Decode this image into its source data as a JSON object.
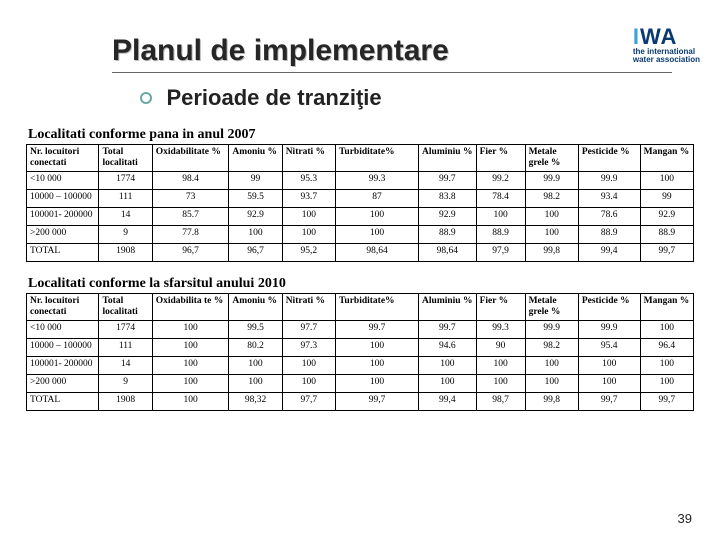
{
  "header": {
    "title": "Planul de implementare",
    "logo": {
      "main": "IWA",
      "sub1": "the international",
      "sub2": "water association"
    }
  },
  "subheading": "Perioade de tranziţie",
  "table1": {
    "caption": "Localitati conforme pana in anul 2007",
    "columns": [
      "Nr. locuitori conectati",
      "Total localitati",
      "Oxidabilitate %",
      "Amoniu %",
      "Nitrati %",
      "Turbiditate%",
      "Aluminiu %",
      "Fier %",
      "Metale grele %",
      "Pesticide %",
      "Mangan %"
    ],
    "rows": [
      [
        "<10 000",
        "1774",
        "98.4",
        "99",
        "95.3",
        "99.3",
        "99.7",
        "99.2",
        "99.9",
        "99.9",
        "100"
      ],
      [
        "10000 – 100000",
        "111",
        "73",
        "59.5",
        "93.7",
        "87",
        "83.8",
        "78.4",
        "98.2",
        "93.4",
        "99"
      ],
      [
        "100001- 200000",
        "14",
        "85.7",
        "92.9",
        "100",
        "100",
        "92.9",
        "100",
        "100",
        "78.6",
        "92.9"
      ],
      [
        ">200 000",
        "9",
        "77.8",
        "100",
        "100",
        "100",
        "88.9",
        "88.9",
        "100",
        "88.9",
        "88.9"
      ],
      [
        "TOTAL",
        "1908",
        "96,7",
        "96,7",
        "95,2",
        "98,64",
        "98,64",
        "97,9",
        "99,8",
        "99,4",
        "99,7"
      ]
    ]
  },
  "table2": {
    "caption": "Localitati conforme la sfarsitul anului 2010",
    "columns": [
      "Nr. locuitori conectati",
      "Total localitati",
      "Oxidabilita te %",
      "Amoniu %",
      "Nitrati %",
      "Turbiditate%",
      "Aluminiu %",
      "Fier %",
      "Metale grele %",
      "Pesticide %",
      "Mangan %"
    ],
    "rows": [
      [
        "<10 000",
        "1774",
        "100",
        "99.5",
        "97.7",
        "99.7",
        "99.7",
        "99.3",
        "99.9",
        "99.9",
        "100"
      ],
      [
        "10000 – 100000",
        "111",
        "100",
        "80.2",
        "97.3",
        "100",
        "94.6",
        "90",
        "98.2",
        "95.4",
        "96.4"
      ],
      [
        "100001- 200000",
        "14",
        "100",
        "100",
        "100",
        "100",
        "100",
        "100",
        "100",
        "100",
        "100"
      ],
      [
        ">200 000",
        "9",
        "100",
        "100",
        "100",
        "100",
        "100",
        "100",
        "100",
        "100",
        "100"
      ],
      [
        "TOTAL",
        "1908",
        "100",
        "98,32",
        "97,7",
        "99,7",
        "99,4",
        "98,7",
        "99,8",
        "99,7",
        "99,7"
      ]
    ]
  },
  "page_number": "39"
}
